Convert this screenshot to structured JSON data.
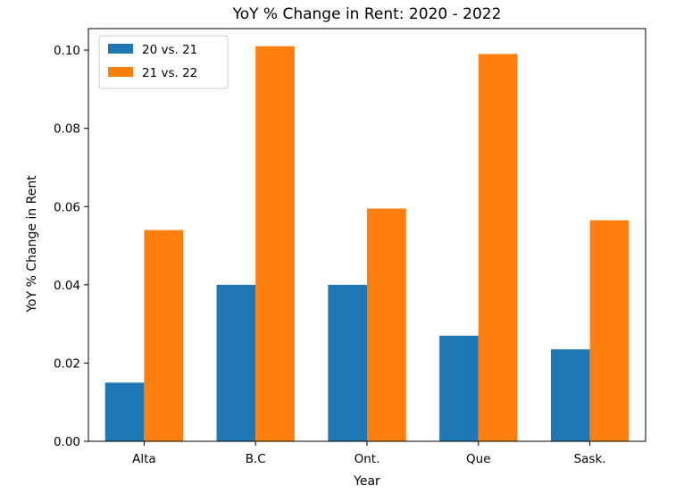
{
  "chart_data": {
    "type": "bar",
    "title": "YoY % Change in Rent: 2020 - 2022",
    "xlabel": "Year",
    "ylabel": "YoY % Change in Rent",
    "categories": [
      "Alta",
      "B.C",
      "Ont.",
      "Que",
      "Sask."
    ],
    "series": [
      {
        "name": "20 vs. 21",
        "color": "#1f77b4",
        "values": [
          0.015,
          0.04,
          0.04,
          0.027,
          0.0235
        ]
      },
      {
        "name": "21 vs. 22",
        "color": "#ff7f0e",
        "values": [
          0.054,
          0.101,
          0.0595,
          0.099,
          0.0565
        ]
      }
    ],
    "ylim": [
      0,
      0.1055
    ],
    "yticks": [
      "0.00",
      "0.02",
      "0.04",
      "0.06",
      "0.08",
      "0.10"
    ],
    "grid": false,
    "legend_position": "top-left"
  }
}
